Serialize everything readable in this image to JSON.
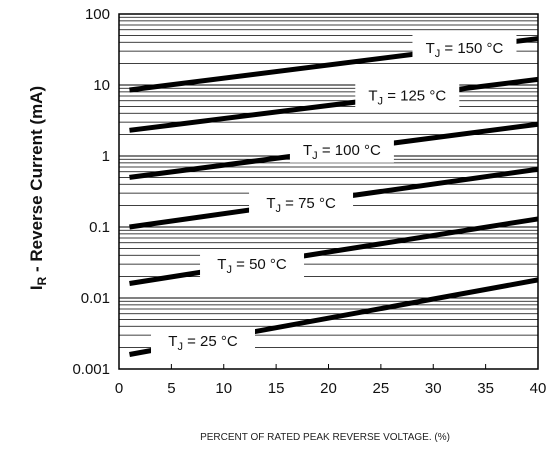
{
  "chart_data": {
    "type": "line",
    "title": "",
    "xlabel": "PERCENT OF RATED PEAK REVERSE VOLTAGE. (%)",
    "ylabel": {
      "symbol": "I",
      "subscript": "R",
      "text": " - Reverse Current (mA)"
    },
    "x_scale": "linear",
    "y_scale": "log",
    "xlim": [
      0,
      40
    ],
    "ylim": [
      0.001,
      100
    ],
    "x_ticks": [
      "0",
      "5",
      "10",
      "15",
      "20",
      "25",
      "30",
      "35",
      "40"
    ],
    "y_ticks": [
      "0.001",
      "0.01",
      "0.1",
      "1",
      "10",
      "100"
    ],
    "grid": "horizontal log minor lines",
    "series": [
      {
        "name": "TJ = 150 °C",
        "label": {
          "sub": "J",
          "rest": " = 150 °C"
        },
        "x": [
          1,
          40
        ],
        "y": [
          8.5,
          45
        ]
      },
      {
        "name": "TJ = 125 °C",
        "label": {
          "sub": "J",
          "rest": " = 125 °C"
        },
        "x": [
          1,
          40
        ],
        "y": [
          2.3,
          12
        ]
      },
      {
        "name": "TJ = 100 °C",
        "label": {
          "sub": "J",
          "rest": " = 100 °C"
        },
        "x": [
          1,
          40
        ],
        "y": [
          0.5,
          2.8
        ]
      },
      {
        "name": "TJ = 75 °C",
        "label": {
          "sub": "J",
          "rest": " = 75 °C"
        },
        "x": [
          1,
          40
        ],
        "y": [
          0.1,
          0.65
        ]
      },
      {
        "name": "TJ = 50 °C",
        "label": {
          "sub": "J",
          "rest": " = 50 °C"
        },
        "x": [
          1,
          40
        ],
        "y": [
          0.016,
          0.13
        ]
      },
      {
        "name": "TJ = 25 °C",
        "label": {
          "sub": "J",
          "rest": " = 25 °C"
        },
        "x": [
          1,
          40
        ],
        "y": [
          0.0016,
          0.018
        ]
      }
    ],
    "line_color": "#000000"
  }
}
